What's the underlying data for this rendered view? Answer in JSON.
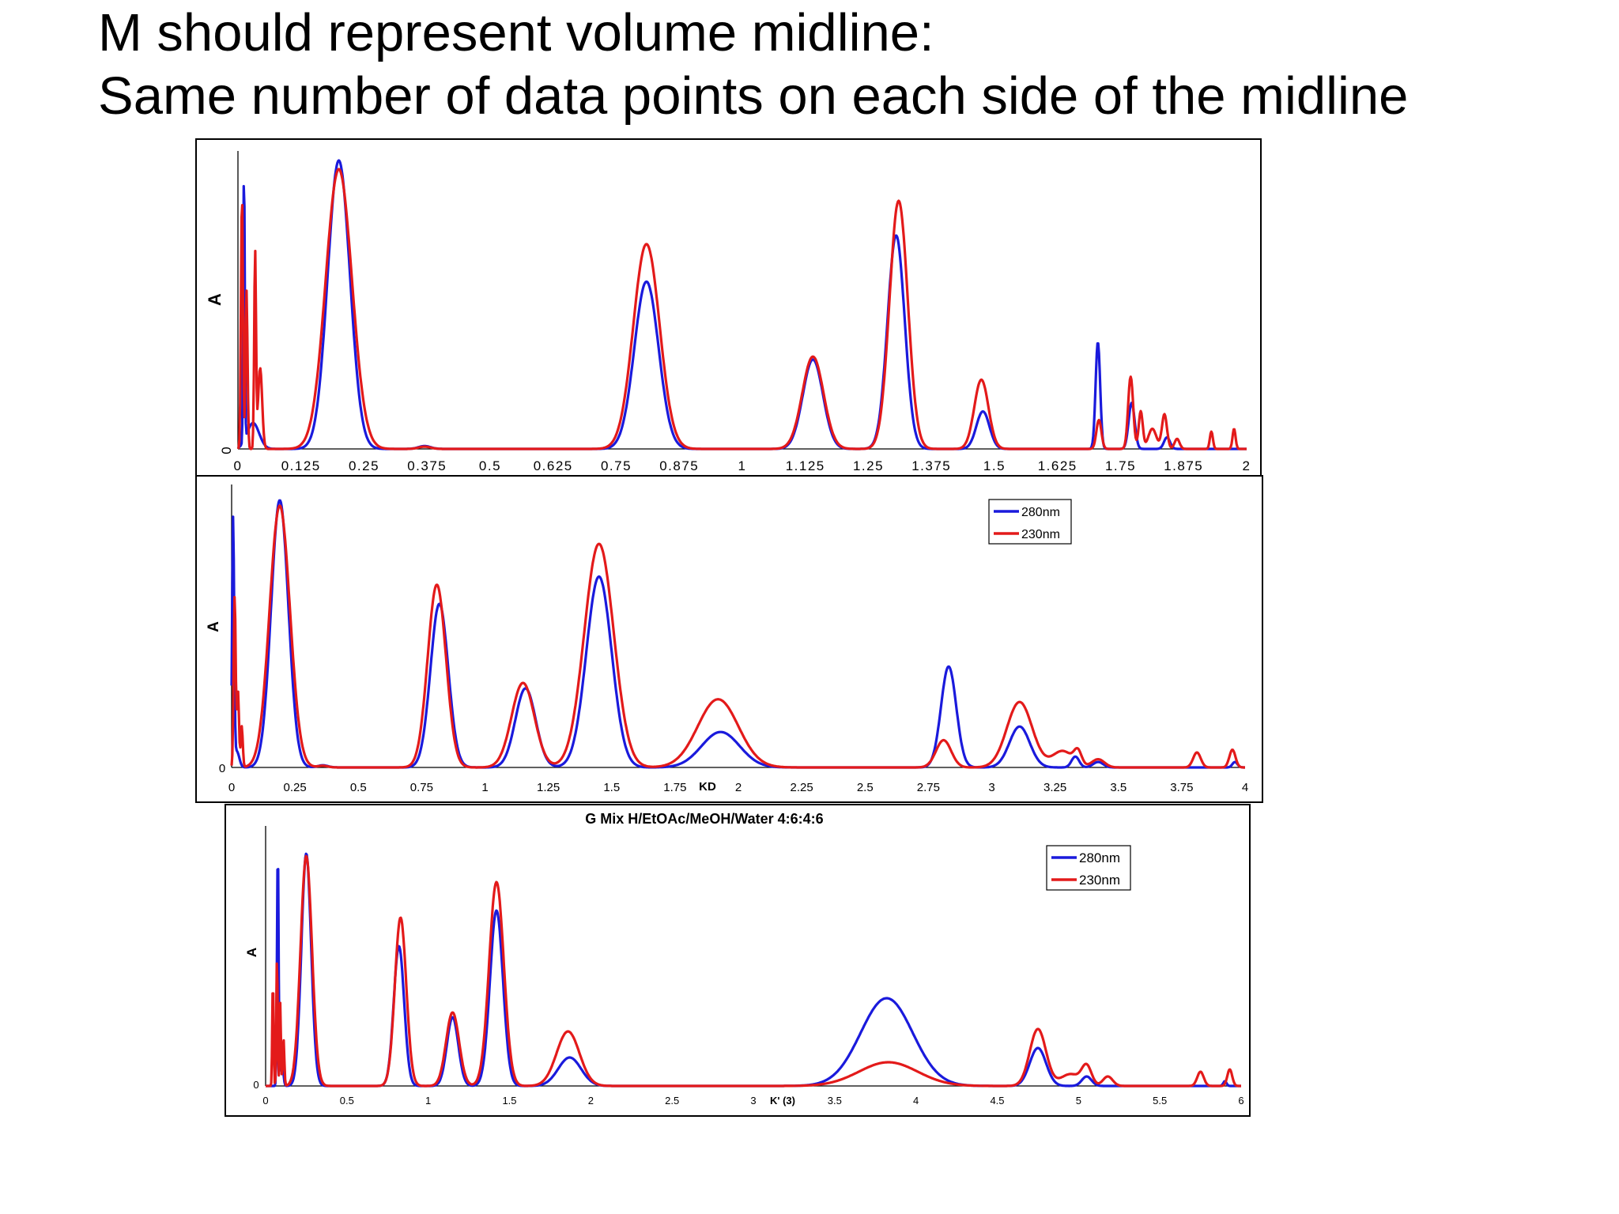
{
  "slide": {
    "title_line1": "M should represent volume midline:",
    "title_line2": "Same number of data points on each side of the midline"
  },
  "colors": {
    "280nm": "#1a1adc",
    "230nm": "#e31a1a"
  },
  "chart_data": [
    {
      "type": "line",
      "title": "",
      "xlabel": "",
      "ylabel": "A",
      "xlim": [
        0,
        2
      ],
      "x_ticks": [
        "0",
        "0.125",
        "0.25",
        "0.375",
        "0.5",
        "0.625",
        "0.75",
        "0.875",
        "1",
        "1.125",
        "1.25",
        "1.375",
        "1.5",
        "1.625",
        "1.75",
        "1.875",
        "2"
      ],
      "y_ticks": [
        "0"
      ],
      "legend": [],
      "series": [
        {
          "name": "280nm",
          "peaks": [
            [
              0.012,
              0.95,
              0.0015
            ],
            [
              0.03,
              0.09,
              0.012
            ],
            [
              0.2,
              1.0,
              0.022
            ],
            [
              0.37,
              0.01,
              0.012
            ],
            [
              0.81,
              0.58,
              0.024
            ],
            [
              1.14,
              0.31,
              0.02
            ],
            [
              1.305,
              0.74,
              0.017
            ],
            [
              1.477,
              0.13,
              0.013
            ],
            [
              1.705,
              0.37,
              0.0045
            ],
            [
              1.772,
              0.16,
              0.006
            ],
            [
              1.842,
              0.04,
              0.006
            ]
          ]
        },
        {
          "name": "230nm",
          "peaks": [
            [
              0.008,
              0.88,
              0.002
            ],
            [
              0.017,
              0.55,
              0.002
            ],
            [
              0.034,
              0.68,
              0.0018
            ],
            [
              0.044,
              0.28,
              0.004
            ],
            [
              0.2,
              0.97,
              0.026
            ],
            [
              0.37,
              0.008,
              0.012
            ],
            [
              0.81,
              0.71,
              0.026
            ],
            [
              1.14,
              0.32,
              0.021
            ],
            [
              1.31,
              0.86,
              0.018
            ],
            [
              1.474,
              0.24,
              0.014
            ],
            [
              1.707,
              0.1,
              0.005
            ],
            [
              1.77,
              0.25,
              0.005
            ],
            [
              1.79,
              0.13,
              0.004
            ],
            [
              1.813,
              0.07,
              0.008
            ],
            [
              1.837,
              0.12,
              0.005
            ],
            [
              1.862,
              0.035,
              0.005
            ],
            [
              1.93,
              0.06,
              0.003
            ],
            [
              1.975,
              0.07,
              0.003
            ]
          ]
        }
      ]
    },
    {
      "type": "line",
      "title": "",
      "xlabel": "KD",
      "ylabel": "A",
      "xlim": [
        0,
        4
      ],
      "x_ticks": [
        "0",
        "0.25",
        "0.5",
        "0.75",
        "1",
        "1.25",
        "1.5",
        "1.75",
        "2",
        "2.25",
        "2.5",
        "2.75",
        "3",
        "3.25",
        "3.5",
        "3.75",
        "4"
      ],
      "y_ticks": [
        "0"
      ],
      "legend": [
        "280nm",
        "230nm"
      ],
      "legend_position": "top-right",
      "series": [
        {
          "name": "280nm",
          "peaks": [
            [
              0.006,
              0.9,
              0.004
            ],
            [
              0.02,
              0.06,
              0.01
            ],
            [
              0.19,
              0.98,
              0.034
            ],
            [
              0.36,
              0.008,
              0.02
            ],
            [
              0.82,
              0.6,
              0.035
            ],
            [
              1.16,
              0.29,
              0.04
            ],
            [
              1.45,
              0.7,
              0.05
            ],
            [
              1.93,
              0.13,
              0.075
            ],
            [
              2.83,
              0.37,
              0.03
            ],
            [
              3.11,
              0.15,
              0.04
            ],
            [
              3.33,
              0.04,
              0.015
            ],
            [
              3.42,
              0.02,
              0.02
            ],
            [
              3.96,
              0.02,
              0.01
            ]
          ]
        },
        {
          "name": "230nm",
          "peaks": [
            [
              0.012,
              0.63,
              0.004
            ],
            [
              0.025,
              0.28,
              0.004
            ],
            [
              0.04,
              0.15,
              0.004
            ],
            [
              0.19,
              0.96,
              0.04
            ],
            [
              0.36,
              0.006,
              0.02
            ],
            [
              0.81,
              0.67,
              0.036
            ],
            [
              1.15,
              0.31,
              0.045
            ],
            [
              1.45,
              0.82,
              0.058
            ],
            [
              1.92,
              0.25,
              0.08
            ],
            [
              2.81,
              0.1,
              0.03
            ],
            [
              3.11,
              0.24,
              0.05
            ],
            [
              3.28,
              0.06,
              0.04
            ],
            [
              3.34,
              0.05,
              0.015
            ],
            [
              3.42,
              0.03,
              0.025
            ],
            [
              3.81,
              0.055,
              0.015
            ],
            [
              3.95,
              0.065,
              0.012
            ]
          ]
        }
      ]
    },
    {
      "type": "line",
      "title": "G Mix H/EtOAc/MeOH/Water  4:6:4:6",
      "xlabel": "K' (3)",
      "ylabel": "A",
      "xlim": [
        0,
        6
      ],
      "x_ticks": [
        "0",
        "0.5",
        "1",
        "1.5",
        "2",
        "2.5",
        "3",
        "3.5",
        "4",
        "4.5",
        "5",
        "5.5",
        "6"
      ],
      "y_ticks": [
        "0"
      ],
      "legend": [
        "280nm",
        "230nm"
      ],
      "legend_position": "top-right",
      "series": [
        {
          "name": "280nm",
          "peaks": [
            [
              0.075,
              1.0,
              0.005
            ],
            [
              0.1,
              0.12,
              0.008
            ],
            [
              0.25,
              0.98,
              0.03
            ],
            [
              0.82,
              0.59,
              0.032
            ],
            [
              1.15,
              0.29,
              0.035
            ],
            [
              1.42,
              0.74,
              0.04
            ],
            [
              1.87,
              0.12,
              0.07
            ],
            [
              3.82,
              0.37,
              0.16
            ],
            [
              4.75,
              0.16,
              0.05
            ],
            [
              5.05,
              0.04,
              0.03
            ],
            [
              5.9,
              0.02,
              0.01
            ]
          ]
        },
        {
          "name": "230nm",
          "peaks": [
            [
              0.045,
              0.45,
              0.004
            ],
            [
              0.07,
              0.55,
              0.004
            ],
            [
              0.09,
              0.35,
              0.004
            ],
            [
              0.11,
              0.2,
              0.005
            ],
            [
              0.25,
              0.97,
              0.035
            ],
            [
              0.83,
              0.71,
              0.035
            ],
            [
              1.15,
              0.31,
              0.04
            ],
            [
              1.42,
              0.86,
              0.045
            ],
            [
              1.86,
              0.23,
              0.07
            ],
            [
              3.83,
              0.1,
              0.18
            ],
            [
              4.75,
              0.24,
              0.05
            ],
            [
              4.95,
              0.05,
              0.06
            ],
            [
              5.05,
              0.08,
              0.03
            ],
            [
              5.18,
              0.04,
              0.03
            ],
            [
              5.75,
              0.06,
              0.02
            ],
            [
              5.93,
              0.07,
              0.015
            ]
          ]
        }
      ]
    }
  ]
}
